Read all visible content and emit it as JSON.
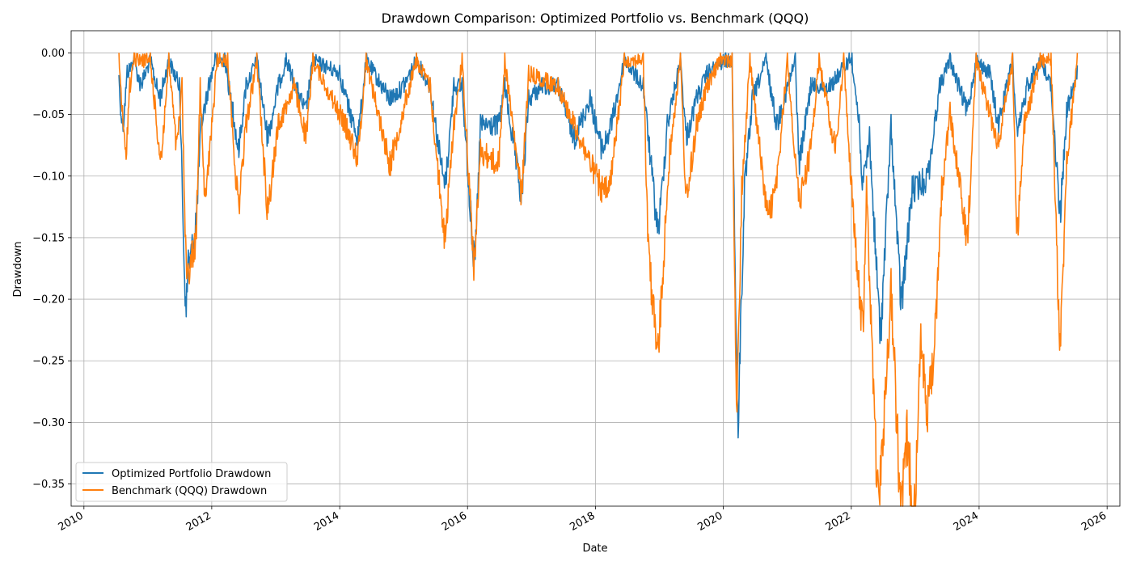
{
  "chart_data": {
    "type": "line",
    "title": "Drawdown Comparison: Optimized Portfolio vs. Benchmark (QQQ)",
    "xlabel": "Date",
    "ylabel": "Drawdown",
    "xlim": [
      "2009-10-20",
      "2026-03-15"
    ],
    "ylim": [
      -0.368,
      0.018
    ],
    "x_ticks": [
      "2010",
      "2012",
      "2014",
      "2016",
      "2018",
      "2020",
      "2022",
      "2024",
      "2026"
    ],
    "y_ticks": [
      0.0,
      -0.05,
      -0.1,
      -0.15,
      -0.2,
      -0.25,
      -0.3,
      -0.35
    ],
    "y_tick_labels": [
      "0.00",
      "−0.05",
      "−0.10",
      "−0.15",
      "−0.20",
      "−0.25",
      "−0.30",
      "−0.35"
    ],
    "grid": true,
    "legend_position": "lower-left",
    "colors": {
      "portfolio": "#1f77b4",
      "benchmark": "#ff7f0e"
    },
    "series": [
      {
        "name": "Optimized Portfolio Drawdown",
        "key": "portfolio",
        "points": [
          [
            "2010-07-20",
            -0.018
          ],
          [
            "2010-08-10",
            -0.056
          ],
          [
            "2010-09-05",
            -0.01
          ],
          [
            "2010-10-15",
            0.0
          ],
          [
            "2010-11-20",
            -0.02
          ],
          [
            "2011-01-15",
            0.0
          ],
          [
            "2011-03-10",
            -0.03
          ],
          [
            "2011-05-01",
            0.0
          ],
          [
            "2011-07-01",
            -0.02
          ],
          [
            "2011-08-05",
            -0.198
          ],
          [
            "2011-08-20",
            -0.16
          ],
          [
            "2011-10-01",
            -0.13
          ],
          [
            "2011-11-01",
            -0.05
          ],
          [
            "2011-12-15",
            -0.02
          ],
          [
            "2012-01-20",
            0.0
          ],
          [
            "2012-03-15",
            0.0
          ],
          [
            "2012-05-01",
            -0.04
          ],
          [
            "2012-06-01",
            -0.07
          ],
          [
            "2012-07-15",
            -0.02
          ],
          [
            "2012-09-15",
            0.0
          ],
          [
            "2012-11-15",
            -0.06
          ],
          [
            "2013-01-15",
            -0.02
          ],
          [
            "2013-03-01",
            0.0
          ],
          [
            "2013-06-20",
            -0.04
          ],
          [
            "2013-08-01",
            0.0
          ],
          [
            "2014-01-01",
            -0.01
          ],
          [
            "2014-02-05",
            -0.03
          ],
          [
            "2014-04-15",
            -0.06
          ],
          [
            "2014-06-01",
            0.0
          ],
          [
            "2014-10-15",
            -0.03
          ],
          [
            "2015-01-01",
            -0.02
          ],
          [
            "2015-03-15",
            0.0
          ],
          [
            "2015-06-01",
            -0.02
          ],
          [
            "2015-08-25",
            -0.1
          ],
          [
            "2015-10-15",
            -0.02
          ],
          [
            "2015-12-01",
            -0.02
          ],
          [
            "2016-01-20",
            -0.12
          ],
          [
            "2016-02-11",
            -0.163
          ],
          [
            "2016-03-15",
            -0.05
          ],
          [
            "2016-06-27",
            -0.05
          ],
          [
            "2016-08-01",
            -0.02
          ],
          [
            "2016-11-05",
            -0.108
          ],
          [
            "2016-12-15",
            -0.03
          ],
          [
            "2017-03-01",
            -0.02
          ],
          [
            "2017-06-01",
            -0.02
          ],
          [
            "2017-09-01",
            -0.06
          ],
          [
            "2017-12-01",
            -0.03
          ],
          [
            "2018-02-08",
            -0.07
          ],
          [
            "2018-04-01",
            -0.05
          ],
          [
            "2018-06-15",
            0.0
          ],
          [
            "2018-10-01",
            -0.02
          ],
          [
            "2018-12-24",
            -0.135
          ],
          [
            "2019-02-15",
            -0.05
          ],
          [
            "2019-05-01",
            0.0
          ],
          [
            "2019-06-03",
            -0.06
          ],
          [
            "2019-08-01",
            -0.03
          ],
          [
            "2019-10-01",
            -0.01
          ],
          [
            "2020-01-15",
            0.0
          ],
          [
            "2020-02-20",
            0.0
          ],
          [
            "2020-03-23",
            -0.287
          ],
          [
            "2020-05-01",
            -0.1
          ],
          [
            "2020-06-15",
            -0.03
          ],
          [
            "2020-09-01",
            0.0
          ],
          [
            "2020-11-01",
            -0.05
          ],
          [
            "2021-02-15",
            0.0
          ],
          [
            "2021-03-08",
            -0.08
          ],
          [
            "2021-05-15",
            -0.02
          ],
          [
            "2021-09-01",
            -0.02
          ],
          [
            "2021-12-20",
            0.0
          ],
          [
            "2022-01-05",
            0.0
          ],
          [
            "2022-02-15",
            -0.05
          ],
          [
            "2022-03-08",
            -0.1
          ],
          [
            "2022-04-15",
            -0.06
          ],
          [
            "2022-06-16",
            -0.215
          ],
          [
            "2022-08-16",
            -0.05
          ],
          [
            "2022-10-13",
            -0.19
          ],
          [
            "2022-12-15",
            -0.1
          ],
          [
            "2023-03-15",
            -0.09
          ],
          [
            "2023-05-20",
            -0.02
          ],
          [
            "2023-07-19",
            0.0
          ],
          [
            "2023-10-26",
            -0.04
          ],
          [
            "2023-12-15",
            0.0
          ],
          [
            "2024-03-01",
            -0.01
          ],
          [
            "2024-04-19",
            -0.05
          ],
          [
            "2024-07-10",
            0.0
          ],
          [
            "2024-08-05",
            -0.06
          ],
          [
            "2024-10-01",
            -0.02
          ],
          [
            "2024-12-15",
            0.0
          ],
          [
            "2025-02-15",
            -0.02
          ],
          [
            "2025-04-08",
            -0.12
          ],
          [
            "2025-05-15",
            -0.04
          ],
          [
            "2025-07-15",
            -0.01
          ]
        ]
      },
      {
        "name": "Benchmark (QQQ) Drawdown",
        "key": "benchmark",
        "points": [
          [
            "2010-07-20",
            0.0
          ],
          [
            "2010-08-27",
            -0.077
          ],
          [
            "2010-09-20",
            -0.02
          ],
          [
            "2010-10-15",
            0.0
          ],
          [
            "2011-01-15",
            0.0
          ],
          [
            "2011-03-16",
            -0.08
          ],
          [
            "2011-05-01",
            0.0
          ],
          [
            "2011-06-15",
            -0.07
          ],
          [
            "2011-07-15",
            -0.02
          ],
          [
            "2011-08-08",
            -0.165
          ],
          [
            "2011-10-03",
            -0.14
          ],
          [
            "2011-10-27",
            -0.02
          ],
          [
            "2011-11-25",
            -0.11
          ],
          [
            "2011-12-15",
            -0.08
          ],
          [
            "2012-02-01",
            0.0
          ],
          [
            "2012-04-01",
            0.0
          ],
          [
            "2012-06-01",
            -0.115
          ],
          [
            "2012-07-15",
            -0.05
          ],
          [
            "2012-09-15",
            0.0
          ],
          [
            "2012-11-15",
            -0.117
          ],
          [
            "2013-01-15",
            -0.05
          ],
          [
            "2013-04-15",
            -0.02
          ],
          [
            "2013-06-24",
            -0.06
          ],
          [
            "2013-08-01",
            0.0
          ],
          [
            "2014-02-03",
            -0.05
          ],
          [
            "2014-04-15",
            -0.075
          ],
          [
            "2014-06-01",
            0.0
          ],
          [
            "2014-10-15",
            -0.08
          ],
          [
            "2015-01-15",
            -0.03
          ],
          [
            "2015-03-15",
            0.0
          ],
          [
            "2015-06-01",
            -0.02
          ],
          [
            "2015-08-24",
            -0.14
          ],
          [
            "2015-10-15",
            -0.05
          ],
          [
            "2015-12-01",
            0.0
          ],
          [
            "2016-02-09",
            -0.162
          ],
          [
            "2016-03-15",
            -0.07
          ],
          [
            "2016-06-27",
            -0.08
          ],
          [
            "2016-08-01",
            0.0
          ],
          [
            "2016-11-04",
            -0.105
          ],
          [
            "2016-12-15",
            -0.01
          ],
          [
            "2017-06-01",
            -0.02
          ],
          [
            "2018-02-08",
            -0.1
          ],
          [
            "2018-03-23",
            -0.1
          ],
          [
            "2018-06-15",
            0.0
          ],
          [
            "2018-10-01",
            0.0
          ],
          [
            "2018-10-29",
            -0.147
          ],
          [
            "2018-12-24",
            -0.228
          ],
          [
            "2019-03-01",
            -0.07
          ],
          [
            "2019-05-01",
            0.0
          ],
          [
            "2019-06-03",
            -0.11
          ],
          [
            "2019-08-01",
            -0.05
          ],
          [
            "2019-10-01",
            -0.02
          ],
          [
            "2019-12-15",
            0.0
          ],
          [
            "2020-02-20",
            0.0
          ],
          [
            "2020-03-16",
            -0.285
          ],
          [
            "2020-04-15",
            -0.1
          ],
          [
            "2020-06-01",
            0.0
          ],
          [
            "2020-09-08",
            -0.12
          ],
          [
            "2020-10-30",
            -0.1
          ],
          [
            "2021-01-01",
            0.0
          ],
          [
            "2021-03-08",
            -0.11
          ],
          [
            "2021-05-12",
            -0.07
          ],
          [
            "2021-07-01",
            0.0
          ],
          [
            "2021-10-04",
            -0.07
          ],
          [
            "2021-11-19",
            0.0
          ],
          [
            "2022-01-27",
            -0.15
          ],
          [
            "2022-03-08",
            -0.21
          ],
          [
            "2022-03-29",
            -0.1
          ],
          [
            "2022-05-20",
            -0.3
          ],
          [
            "2022-06-16",
            -0.327
          ],
          [
            "2022-08-16",
            -0.175
          ],
          [
            "2022-10-13",
            -0.352
          ],
          [
            "2022-11-15",
            -0.29
          ],
          [
            "2022-12-28",
            -0.35
          ],
          [
            "2023-02-02",
            -0.22
          ],
          [
            "2023-03-15",
            -0.27
          ],
          [
            "2023-05-01",
            -0.2
          ],
          [
            "2023-06-01",
            -0.1
          ],
          [
            "2023-07-19",
            -0.04
          ],
          [
            "2023-10-26",
            -0.14
          ],
          [
            "2023-12-15",
            0.0
          ],
          [
            "2024-04-19",
            -0.065
          ],
          [
            "2024-07-10",
            0.0
          ],
          [
            "2024-08-05",
            -0.136
          ],
          [
            "2024-09-15",
            -0.05
          ],
          [
            "2024-12-15",
            0.0
          ],
          [
            "2025-02-15",
            0.0
          ],
          [
            "2025-04-08",
            -0.228
          ],
          [
            "2025-05-15",
            -0.08
          ],
          [
            "2025-07-15",
            0.0
          ]
        ]
      }
    ]
  }
}
